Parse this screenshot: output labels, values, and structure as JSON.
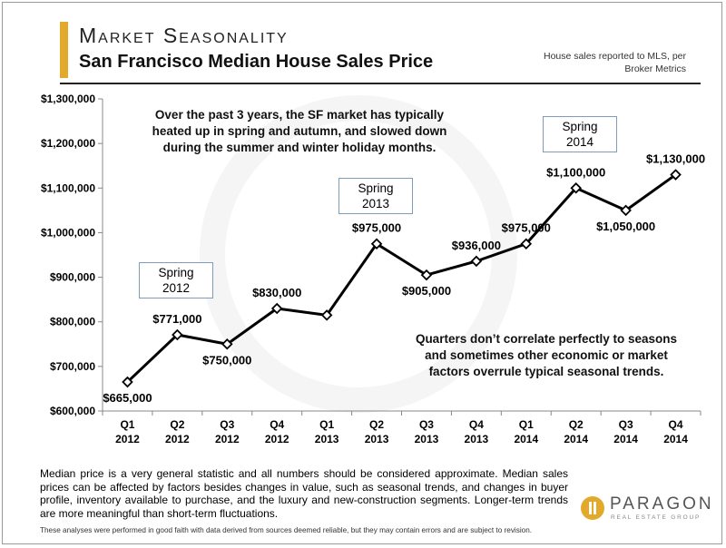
{
  "header": {
    "title": "Market Seasonality",
    "subtitle": "San Francisco Median House Sales Price",
    "source_note": "House sales reported to MLS, per Broker Metrics"
  },
  "chart_data": {
    "type": "line",
    "categories": [
      "Q1 2012",
      "Q2 2012",
      "Q3 2012",
      "Q4 2012",
      "Q1 2013",
      "Q2 2013",
      "Q3 2013",
      "Q4 2013",
      "Q1 2014",
      "Q2 2014",
      "Q3 2014",
      "Q4 2014"
    ],
    "x_ticks": [
      {
        "q": "Q1",
        "y": "2012"
      },
      {
        "q": "Q2",
        "y": "2012"
      },
      {
        "q": "Q3",
        "y": "2012"
      },
      {
        "q": "Q4",
        "y": "2012"
      },
      {
        "q": "Q1",
        "y": "2013"
      },
      {
        "q": "Q2",
        "y": "2013"
      },
      {
        "q": "Q3",
        "y": "2013"
      },
      {
        "q": "Q4",
        "y": "2013"
      },
      {
        "q": "Q1",
        "y": "2014"
      },
      {
        "q": "Q2",
        "y": "2014"
      },
      {
        "q": "Q3",
        "y": "2014"
      },
      {
        "q": "Q4",
        "y": "2014"
      }
    ],
    "values": [
      665000,
      771000,
      750000,
      830000,
      815000,
      975000,
      905000,
      936000,
      975000,
      1100000,
      1050000,
      1130000
    ],
    "data_labels": [
      "$665,000",
      "$771,000",
      "$750,000",
      "$830,000",
      "",
      "$975,000",
      "$905,000",
      "$936,000",
      "$975,000",
      "$1,100,000",
      "$1,050,000",
      "$1,130,000"
    ],
    "ylim": [
      600000,
      1300000
    ],
    "y_ticks": [
      600000,
      700000,
      800000,
      900000,
      1000000,
      1100000,
      1200000,
      1300000
    ],
    "y_tick_labels": [
      "$600,000",
      "$700,000",
      "$800,000",
      "$900,000",
      "$1,000,000",
      "$1,100,000",
      "$1,200,000",
      "$1,300,000"
    ],
    "grid": false,
    "line_color": "#000000",
    "marker": "diamond"
  },
  "annotations": {
    "top_note": "Over the past 3 years, the SF market has typically heated up in spring and autumn, and slowed down during the summer and winter holiday months.",
    "top_note_lines": [
      "Over the past 3 years, the SF market has typically",
      "heated up in spring and autumn, and slowed down",
      "during the summer and winter holiday months."
    ],
    "quarter_note_lines": [
      "Quarters don’t correlate perfectly to seasons",
      "and sometimes other economic or market",
      "factors overrule typical seasonal trends."
    ],
    "spring_2012": [
      "Spring",
      "2012"
    ],
    "spring_2013": [
      "Spring",
      "2013"
    ],
    "spring_2014": [
      "Spring",
      "2014"
    ]
  },
  "footer": {
    "text": "Median price is a very general statistic and all numbers should be considered approximate. Median sales prices can be affected by factors besides changes in value, such as seasonal trends, and changes in buyer profile, inventory available to purchase, and the luxury and new-construction segments. Longer-term trends are more meaningful than short-term fluctuations.",
    "disclaimer": "These analyses were performed in good faith with data derived from sources deemed reliable, but they may contain errors and are subject to revision."
  },
  "logo": {
    "name": "PARAGON",
    "tagline": "REAL ESTATE GROUP",
    "brand_color": "#e3a92a"
  }
}
